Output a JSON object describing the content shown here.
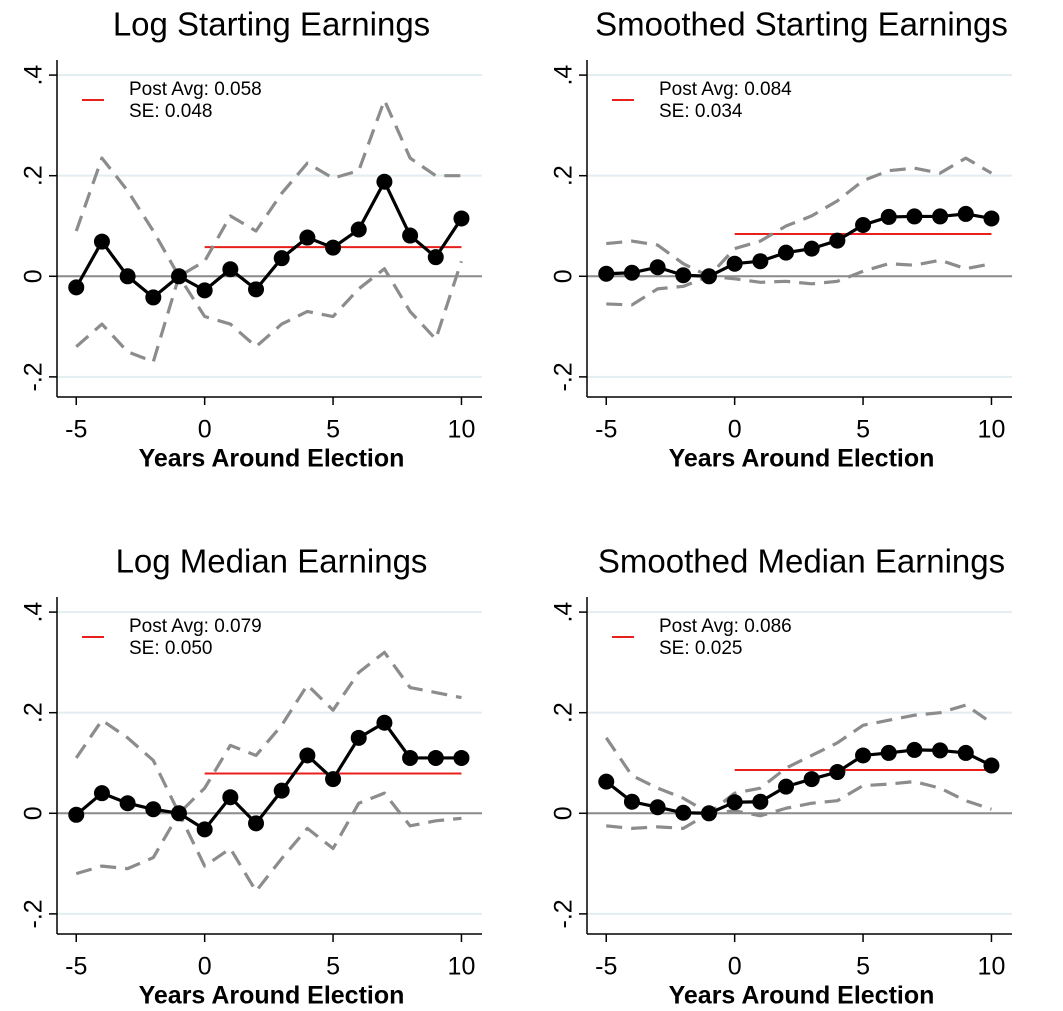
{
  "chart_data": [
    {
      "type": "line",
      "title": "Log Starting Earnings",
      "xlabel": "Years Around Election",
      "x": [
        -5,
        -4,
        -3,
        -2,
        -1,
        0,
        1,
        2,
        3,
        4,
        5,
        6,
        7,
        8,
        9,
        10
      ],
      "series": [
        {
          "color": "#000000",
          "style": "solid-markers",
          "values": [
            -0.022,
            0.069,
            0.0,
            -0.042,
            0.0,
            -0.028,
            0.014,
            -0.026,
            0.036,
            0.077,
            0.057,
            0.093,
            0.188,
            0.081,
            0.038,
            0.115
          ]
        },
        {
          "color": "#8c8c8c",
          "style": "dashed",
          "values": [
            0.09,
            0.235,
            0.17,
            0.09,
            0.0,
            0.03,
            0.12,
            0.09,
            0.165,
            0.225,
            0.195,
            0.21,
            0.35,
            0.235,
            0.2,
            0.2
          ]
        },
        {
          "color": "#8c8c8c",
          "style": "dashed",
          "values": [
            -0.14,
            -0.095,
            -0.15,
            -0.17,
            0.0,
            -0.08,
            -0.095,
            -0.14,
            -0.095,
            -0.07,
            -0.08,
            -0.025,
            0.015,
            -0.07,
            -0.125,
            0.03
          ]
        }
      ],
      "post_avg": {
        "value": 0.058,
        "label": "Post Avg: 0.058",
        "x": [
          0,
          10
        ],
        "color": "#e8201c"
      },
      "se_label": "SE: 0.048",
      "xlim": [
        -5.75,
        10.8
      ],
      "xticks": [
        -5,
        0,
        5,
        10
      ],
      "ylim": [
        -0.24,
        0.43
      ],
      "yticks": [
        {
          "value": -0.2,
          "label": "-.2"
        },
        0,
        {
          "value": 0.2,
          "label": ".2"
        },
        {
          "value": 0.4,
          "label": ".4"
        }
      ],
      "grid": true,
      "zero_line": true
    },
    {
      "type": "line",
      "title": "Smoothed Starting Earnings",
      "xlabel": "Years Around Election",
      "x": [
        -5,
        -4,
        -3,
        -2,
        -1,
        0,
        1,
        2,
        3,
        4,
        5,
        6,
        7,
        8,
        9,
        10
      ],
      "series": [
        {
          "color": "#000000",
          "style": "solid-markers",
          "values": [
            0.005,
            0.007,
            0.018,
            0.002,
            0.0,
            0.025,
            0.03,
            0.047,
            0.055,
            0.071,
            0.102,
            0.118,
            0.119,
            0.119,
            0.124,
            0.115
          ]
        },
        {
          "color": "#8c8c8c",
          "style": "dashed",
          "values": [
            0.065,
            0.07,
            0.062,
            0.025,
            0.0,
            0.055,
            0.07,
            0.1,
            0.12,
            0.15,
            0.19,
            0.21,
            0.215,
            0.205,
            0.235,
            0.205
          ]
        },
        {
          "color": "#8c8c8c",
          "style": "dashed",
          "values": [
            -0.055,
            -0.057,
            -0.025,
            -0.02,
            0.0,
            -0.005,
            -0.012,
            -0.01,
            -0.015,
            -0.01,
            0.01,
            0.025,
            0.022,
            0.032,
            0.015,
            0.025
          ]
        }
      ],
      "post_avg": {
        "value": 0.084,
        "label": "Post Avg: 0.084",
        "x": [
          0,
          10
        ],
        "color": "#e8201c"
      },
      "se_label": "SE: 0.034",
      "xlim": [
        -5.75,
        10.8
      ],
      "xticks": [
        -5,
        0,
        5,
        10
      ],
      "ylim": [
        -0.24,
        0.43
      ],
      "yticks": [
        {
          "value": -0.2,
          "label": "-.2"
        },
        0,
        {
          "value": 0.2,
          "label": ".2"
        },
        {
          "value": 0.4,
          "label": ".4"
        }
      ],
      "grid": true,
      "zero_line": true
    },
    {
      "type": "line",
      "title": "Log Median Earnings",
      "xlabel": "Years Around Election",
      "x": [
        -5,
        -4,
        -3,
        -2,
        -1,
        0,
        1,
        2,
        3,
        4,
        5,
        6,
        7,
        8,
        9,
        10
      ],
      "series": [
        {
          "color": "#000000",
          "style": "solid-markers",
          "values": [
            -0.003,
            0.04,
            0.02,
            0.008,
            0.0,
            -0.032,
            0.032,
            -0.02,
            0.045,
            0.115,
            0.068,
            0.15,
            0.18,
            0.11,
            0.11,
            0.11
          ]
        },
        {
          "color": "#8c8c8c",
          "style": "dashed",
          "values": [
            0.11,
            0.185,
            0.15,
            0.105,
            0.0,
            0.05,
            0.135,
            0.115,
            0.175,
            0.255,
            0.205,
            0.28,
            0.32,
            0.25,
            0.24,
            0.23
          ]
        },
        {
          "color": "#8c8c8c",
          "style": "dashed",
          "values": [
            -0.12,
            -0.105,
            -0.11,
            -0.088,
            0.0,
            -0.105,
            -0.07,
            -0.155,
            -0.09,
            -0.03,
            -0.07,
            0.02,
            0.04,
            -0.025,
            -0.015,
            -0.01
          ]
        }
      ],
      "post_avg": {
        "value": 0.079,
        "label": "Post Avg: 0.079",
        "x": [
          0,
          10
        ],
        "color": "#e8201c"
      },
      "se_label": "SE: 0.050",
      "xlim": [
        -5.75,
        10.8
      ],
      "xticks": [
        -5,
        0,
        5,
        10
      ],
      "ylim": [
        -0.24,
        0.43
      ],
      "yticks": [
        {
          "value": -0.2,
          "label": "-.2"
        },
        0,
        {
          "value": 0.2,
          "label": ".2"
        },
        {
          "value": 0.4,
          "label": ".4"
        }
      ],
      "grid": true,
      "zero_line": true
    },
    {
      "type": "line",
      "title": "Smoothed Median Earnings",
      "xlabel": "Years Around Election",
      "x": [
        -5,
        -4,
        -3,
        -2,
        -1,
        0,
        1,
        2,
        3,
        4,
        5,
        6,
        7,
        8,
        9,
        10
      ],
      "series": [
        {
          "color": "#000000",
          "style": "solid-markers",
          "values": [
            0.063,
            0.023,
            0.012,
            0.001,
            0.0,
            0.022,
            0.023,
            0.053,
            0.068,
            0.082,
            0.115,
            0.12,
            0.126,
            0.125,
            0.12,
            0.095
          ]
        },
        {
          "color": "#8c8c8c",
          "style": "dashed",
          "values": [
            0.15,
            0.075,
            0.05,
            0.03,
            0.0,
            0.04,
            0.05,
            0.09,
            0.115,
            0.14,
            0.175,
            0.185,
            0.195,
            0.2,
            0.215,
            0.18
          ]
        },
        {
          "color": "#8c8c8c",
          "style": "dashed",
          "values": [
            -0.025,
            -0.03,
            -0.027,
            -0.03,
            0.0,
            0.005,
            -0.005,
            0.01,
            0.02,
            0.025,
            0.055,
            0.058,
            0.063,
            0.05,
            0.025,
            0.008
          ]
        }
      ],
      "post_avg": {
        "value": 0.086,
        "label": "Post Avg: 0.086",
        "x": [
          0,
          10
        ],
        "color": "#e8201c"
      },
      "se_label": "SE: 0.025",
      "xlim": [
        -5.75,
        10.8
      ],
      "xticks": [
        -5,
        0,
        5,
        10
      ],
      "ylim": [
        -0.24,
        0.43
      ],
      "yticks": [
        {
          "value": -0.2,
          "label": "-.2"
        },
        0,
        {
          "value": 0.2,
          "label": ".2"
        },
        {
          "value": 0.4,
          "label": ".4"
        }
      ],
      "grid": true,
      "zero_line": true
    }
  ]
}
